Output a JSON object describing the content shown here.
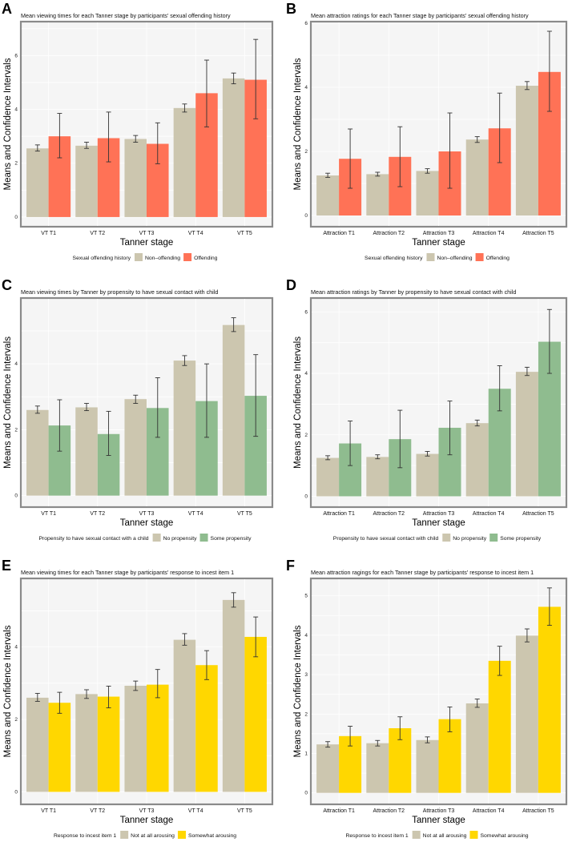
{
  "chart_data": [
    {
      "panel": "A",
      "type": "bar",
      "title": "Mean viewing times for each Tanner stage by participants' sexual offending history",
      "xlabel": "Tanner stage",
      "ylabel": "Means and Confidence Intervals",
      "ylim": [
        -0.3,
        7.2
      ],
      "yticks": [
        0,
        2,
        4,
        6
      ],
      "categories": [
        "VT T1",
        "VT T2",
        "VT T3",
        "VT T4",
        "VT T5"
      ],
      "legend_title": "Sexual offending history",
      "legend_position": "bottom",
      "series": [
        {
          "name": "Non–offending",
          "color": "#CCC6AF",
          "values": [
            2.55,
            2.65,
            2.9,
            4.05,
            5.15
          ],
          "ci_low": [
            2.45,
            2.55,
            2.78,
            3.9,
            4.95
          ],
          "ci_high": [
            2.68,
            2.78,
            3.03,
            4.2,
            5.35
          ]
        },
        {
          "name": "Offending",
          "color": "#FF7256",
          "values": [
            3.0,
            2.93,
            2.72,
            4.6,
            5.1
          ],
          "ci_low": [
            2.2,
            2.05,
            1.98,
            3.35,
            3.65
          ],
          "ci_high": [
            3.85,
            3.9,
            3.5,
            5.83,
            6.6
          ]
        }
      ]
    },
    {
      "panel": "B",
      "type": "bar",
      "title": "Mean attraction ratings for each Tanner stage by participants' sexual offending history",
      "xlabel": "Tanner stage",
      "ylabel": "Means and Confidence Intervals",
      "ylim": [
        -0.3,
        6.0
      ],
      "yticks": [
        0,
        2,
        4,
        6
      ],
      "categories": [
        "Attraction T1",
        "Attraction T2",
        "Attraction T3",
        "Attraction T4",
        "Attraction T5"
      ],
      "legend_title": "Sexual offending history",
      "legend_position": "bottom",
      "series": [
        {
          "name": "Non–offending",
          "color": "#CCC6AF",
          "values": [
            1.25,
            1.29,
            1.39,
            2.37,
            4.05
          ],
          "ci_low": [
            1.19,
            1.23,
            1.32,
            2.28,
            3.93
          ],
          "ci_high": [
            1.32,
            1.35,
            1.46,
            2.46,
            4.18
          ]
        },
        {
          "name": "Offending",
          "color": "#FF7256",
          "values": [
            1.77,
            1.83,
            2.0,
            2.72,
            4.48
          ],
          "ci_low": [
            0.85,
            0.9,
            0.85,
            1.65,
            3.25
          ],
          "ci_high": [
            2.7,
            2.77,
            3.2,
            3.82,
            5.75
          ]
        }
      ]
    },
    {
      "panel": "C",
      "type": "bar",
      "title": "Mean viewing times by Tanner by propensity to have sexual contact with child",
      "xlabel": "Tanner stage",
      "ylabel": "Means and Confidence Intervals",
      "ylim": [
        -0.3,
        5.95
      ],
      "yticks": [
        0,
        2,
        4
      ],
      "categories": [
        "VT T1",
        "VT T2",
        "VT T3",
        "VT T4",
        "VT T5"
      ],
      "legend_title": "Propensity to have sexual contact with a child",
      "legend_position": "bottom",
      "series": [
        {
          "name": "No propensity",
          "color": "#CCC6AF",
          "values": [
            2.6,
            2.68,
            2.93,
            4.1,
            5.18
          ],
          "ci_low": [
            2.5,
            2.58,
            2.8,
            3.95,
            4.98
          ],
          "ci_high": [
            2.72,
            2.8,
            3.05,
            4.25,
            5.4
          ]
        },
        {
          "name": "Some propensity",
          "color": "#8FBC8F",
          "values": [
            2.13,
            1.87,
            2.66,
            2.87,
            3.03
          ],
          "ci_low": [
            1.35,
            1.22,
            1.77,
            1.77,
            1.8
          ],
          "ci_high": [
            2.91,
            2.56,
            3.58,
            4.0,
            4.28
          ]
        }
      ]
    },
    {
      "panel": "D",
      "type": "bar",
      "title": "Mean attraction ratings by Tanner by propensity to have sexual contact with child",
      "xlabel": "Tanner stage",
      "ylabel": "Means and Confidence Intervals",
      "ylim": [
        -0.3,
        6.4
      ],
      "yticks": [
        0,
        2,
        4,
        6
      ],
      "categories": [
        "Attraction T1",
        "Attraction T2",
        "Attraction T3",
        "Attraction T4",
        "Attraction T5"
      ],
      "legend_title": "Propensity to have sexual contact with child",
      "legend_position": "bottom",
      "series": [
        {
          "name": "No propensity",
          "color": "#CCC6AF",
          "values": [
            1.25,
            1.28,
            1.38,
            2.38,
            4.05
          ],
          "ci_low": [
            1.19,
            1.22,
            1.31,
            2.29,
            3.93
          ],
          "ci_high": [
            1.32,
            1.35,
            1.46,
            2.48,
            4.2
          ]
        },
        {
          "name": "Some propensity",
          "color": "#8FBC8F",
          "values": [
            1.72,
            1.86,
            2.23,
            3.5,
            5.03
          ],
          "ci_low": [
            1.0,
            0.93,
            1.35,
            2.78,
            4.0
          ],
          "ci_high": [
            2.45,
            2.8,
            3.1,
            4.25,
            6.08
          ]
        }
      ]
    },
    {
      "panel": "E",
      "type": "bar",
      "title": "Mean viewing times for each Tanner stage by participants' response to incest item 1",
      "xlabel": "Tanner stage",
      "ylabel": "Means and Confidence Intervals",
      "ylim": [
        -0.3,
        5.85
      ],
      "yticks": [
        0,
        2,
        4
      ],
      "categories": [
        "VT T1",
        "VT T2",
        "VT T3",
        "VT T4",
        "VT T5"
      ],
      "legend_title": "Response to incest item 1",
      "legend_position": "bottom",
      "series": [
        {
          "name": "Not at all arousing",
          "color": "#CCC6AF",
          "values": [
            2.6,
            2.7,
            2.93,
            4.2,
            5.3
          ],
          "ci_low": [
            2.5,
            2.58,
            2.8,
            4.05,
            5.1
          ],
          "ci_high": [
            2.72,
            2.82,
            3.06,
            4.37,
            5.5
          ]
        },
        {
          "name": "Somewhat arousing",
          "color": "#FFD700",
          "values": [
            2.46,
            2.63,
            2.96,
            3.5,
            4.28
          ],
          "ci_low": [
            2.17,
            2.32,
            2.6,
            3.1,
            3.73
          ],
          "ci_high": [
            2.75,
            2.92,
            3.38,
            3.9,
            4.83
          ]
        }
      ]
    },
    {
      "panel": "F",
      "type": "bar",
      "title": "Mean attraction ragings for each Tanner stage by participants' response to incest item 1",
      "xlabel": "Tanner stage",
      "ylabel": "Means and Confidence Intervals",
      "ylim": [
        -0.25,
        5.4
      ],
      "yticks": [
        0,
        1,
        2,
        3,
        4,
        5
      ],
      "categories": [
        "Attraction T1",
        "Attraction T2",
        "Attraction T3",
        "Attraction T4",
        "Attraction T5"
      ],
      "legend_title": "Response to incest item 1",
      "legend_position": "bottom",
      "series": [
        {
          "name": "Not at all arousing",
          "color": "#CCC6AF",
          "values": [
            1.23,
            1.26,
            1.34,
            2.27,
            3.99
          ],
          "ci_low": [
            1.16,
            1.19,
            1.27,
            2.17,
            3.83
          ],
          "ci_high": [
            1.3,
            1.33,
            1.42,
            2.38,
            4.16
          ]
        },
        {
          "name": "Somewhat arousing",
          "color": "#FFD700",
          "values": [
            1.44,
            1.64,
            1.87,
            3.35,
            4.72
          ],
          "ci_low": [
            1.19,
            1.35,
            1.55,
            2.98,
            4.25
          ],
          "ci_high": [
            1.69,
            1.93,
            2.18,
            3.72,
            5.2
          ]
        }
      ]
    }
  ]
}
